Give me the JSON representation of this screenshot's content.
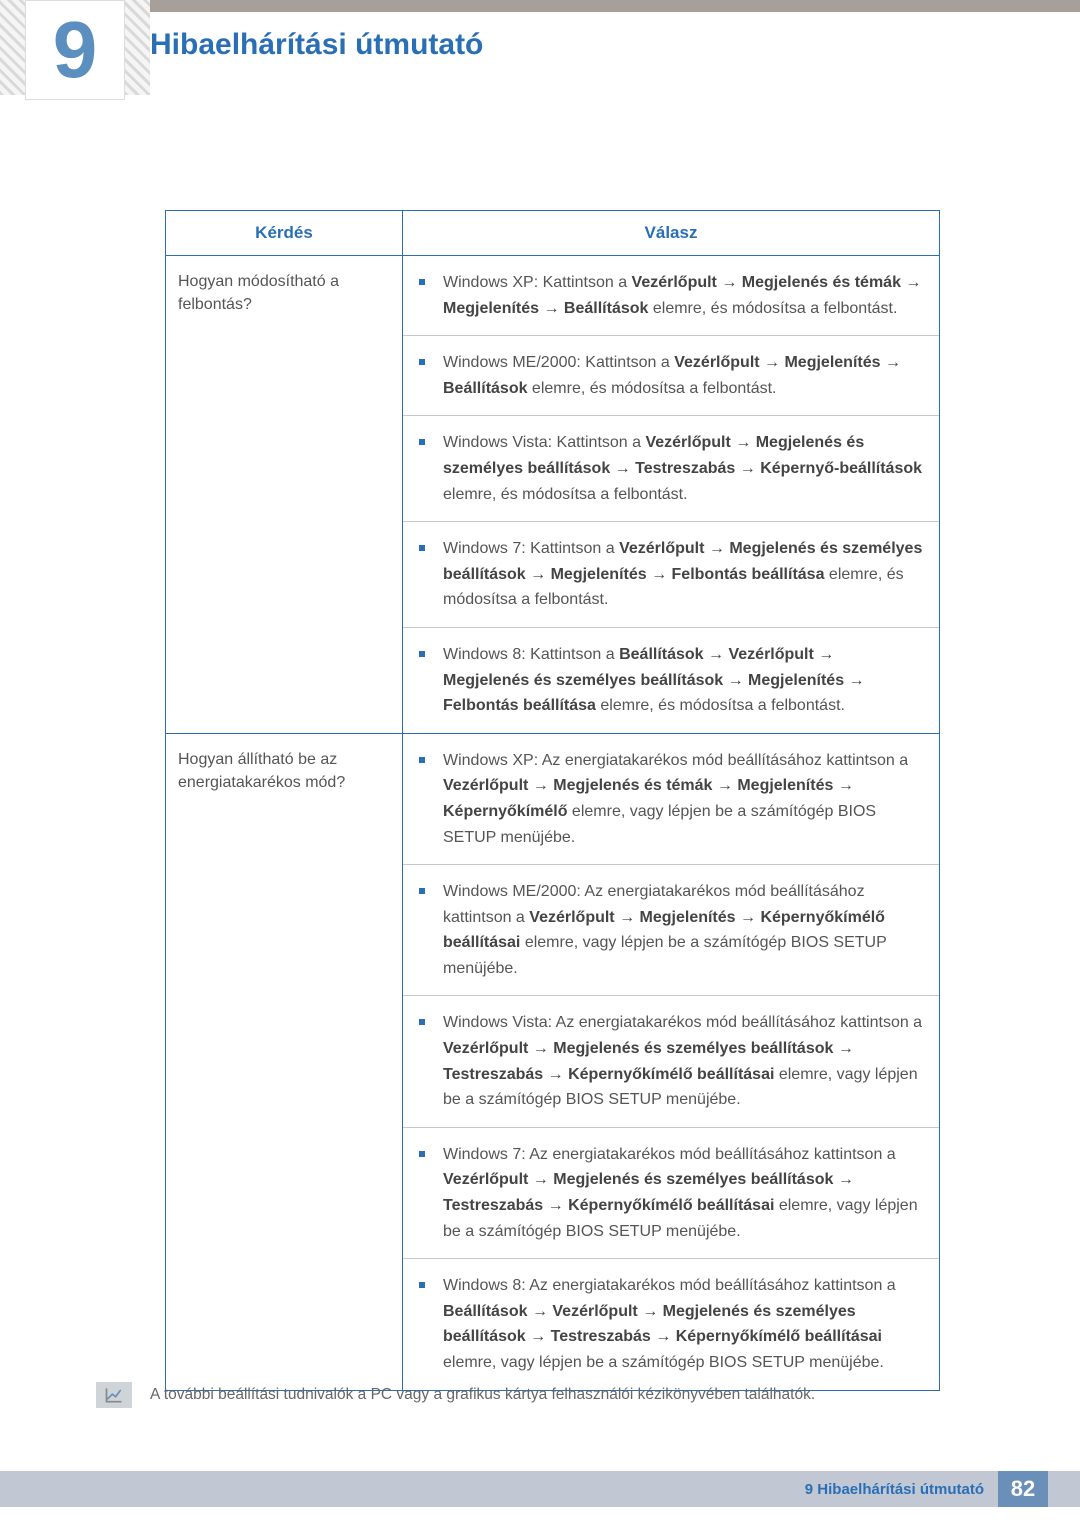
{
  "header": {
    "chapter_number": "9",
    "chapter_title": "Hibaelhárítási útmutató"
  },
  "table": {
    "headers": {
      "question": "Kérdés",
      "answer": "Válasz"
    },
    "rows": [
      {
        "question": "Hogyan módosítható a felbontás?",
        "answers": [
          "Windows XP: Kattintson a <b>Vezérlőpult <span class='arrow'>→</span> Megjelenés és témák <span class='arrow'>→</span> Megjelenítés <span class='arrow'>→</span> Beállítások</b> elemre, és módosítsa a felbontást.",
          "Windows ME/2000: Kattintson a <b>Vezérlőpult <span class='arrow'>→</span> Megjelenítés <span class='arrow'>→</span> Beállítások</b> elemre, és módosítsa a felbontást.",
          "Windows Vista: Kattintson a <b>Vezérlőpult <span class='arrow'>→</span> Megjelenés és személyes beállítások <span class='arrow'>→</span> Testreszabás <span class='arrow'>→</span> Képernyő-beállítások</b> elemre, és módosítsa a felbontást.",
          "Windows 7: Kattintson a <b>Vezérlőpult <span class='arrow'>→</span> Megjelenés és személyes beállítások <span class='arrow'>→</span> Megjelenítés <span class='arrow'>→</span> Felbontás beállítása</b> elemre, és módosítsa a felbontást.",
          "Windows 8: Kattintson a <b>Beállítások <span class='arrow'>→</span> Vezérlőpult <span class='arrow'>→</span> Megjelenés és személyes beállítások <span class='arrow'>→</span> Megjelenítés <span class='arrow'>→</span> Felbontás beállítása</b> elemre, és módosítsa a felbontást."
        ]
      },
      {
        "question": "Hogyan állítható be az energiatakarékos mód?",
        "answers": [
          "Windows XP: Az energiatakarékos mód beállításához kattintson a <b>Vezérlőpult <span class='arrow'>→</span> Megjelenés és témák <span class='arrow'>→</span> Megjelenítés <span class='arrow'>→</span> Képernyőkímélő</b> elemre, vagy lépjen be a számítógép BIOS SETUP menüjébe.",
          "Windows ME/2000: Az energiatakarékos mód beállításához kattintson a <b>Vezérlőpult <span class='arrow'>→</span> Megjelenítés <span class='arrow'>→</span> Képernyőkímélő beállításai</b> elemre, vagy lépjen be a számítógép BIOS SETUP menüjébe.",
          "Windows Vista: Az energiatakarékos mód beállításához kattintson a <b>Vezérlőpult <span class='arrow'>→</span> Megjelenés és személyes beállítások <span class='arrow'>→</span> Testreszabás <span class='arrow'>→</span> Képernyőkímélő beállításai</b> elemre, vagy lépjen be a számítógép BIOS SETUP menüjébe.",
          "Windows 7: Az energiatakarékos mód beállításához kattintson a <b>Vezérlőpult <span class='arrow'>→</span> Megjelenés és személyes beállítások <span class='arrow'>→</span> Testreszabás <span class='arrow'>→</span> Képernyőkímélő beállításai</b> elemre, vagy lépjen be a számítógép BIOS SETUP menüjébe.",
          "Windows 8: Az energiatakarékos mód beállításához kattintson a <b>Beállítások <span class='arrow'>→</span> Vezérlőpult <span class='arrow'>→</span> Megjelenés és személyes beállítások <span class='arrow'>→</span> Testreszabás <span class='arrow'>→</span> Képernyőkímélő beállításai</b> elemre, vagy lépjen be a számítógép BIOS SETUP menüjébe."
        ]
      }
    ]
  },
  "note": "A további beállítási tudnivalók a PC vagy a grafikus kártya felhasználói kézikönyvében találhatók.",
  "footer": {
    "label": "9 Hibaelhárítási útmutató",
    "page": "82"
  },
  "colors": {
    "accent": "#2a6fb5",
    "top_stripe": "#a7a09a",
    "footer_bar": "#c1c7d3",
    "page_box": "#6a8fb8"
  }
}
